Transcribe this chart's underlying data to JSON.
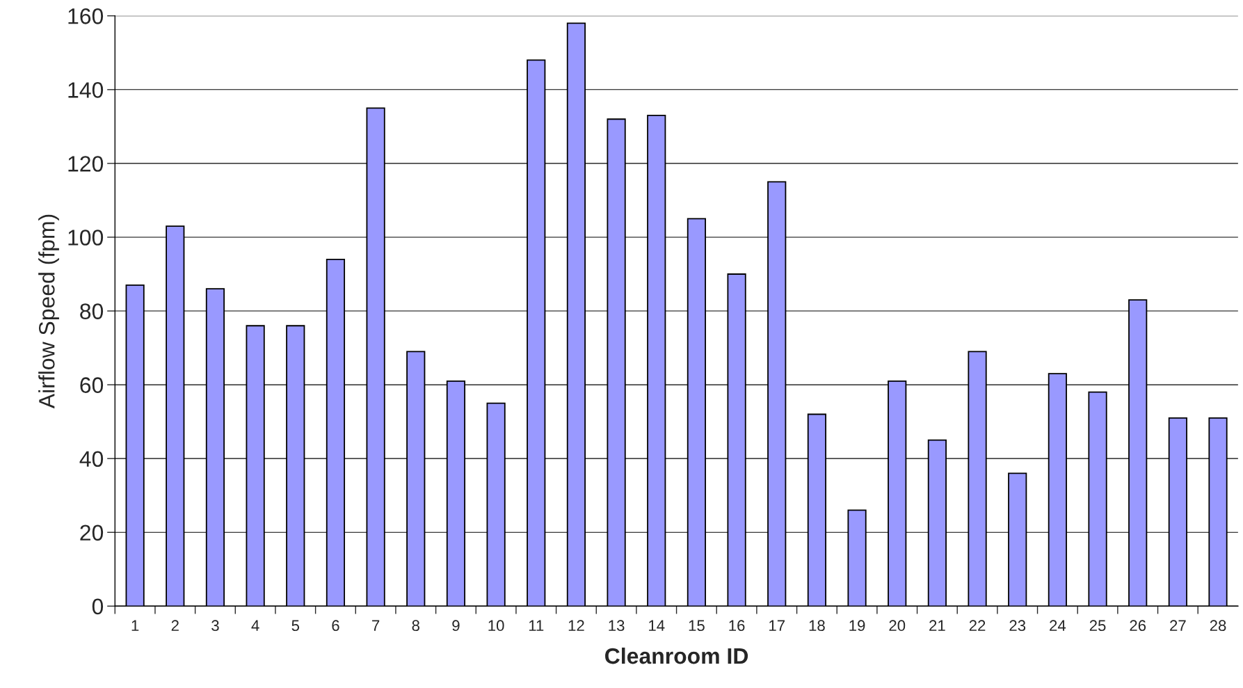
{
  "chart_data": {
    "type": "bar",
    "xlabel": "Cleanroom ID",
    "ylabel": "Airflow Speed (fpm)",
    "categories": [
      "1",
      "2",
      "3",
      "4",
      "5",
      "6",
      "7",
      "8",
      "9",
      "10",
      "11",
      "12",
      "13",
      "14",
      "15",
      "16",
      "17",
      "18",
      "19",
      "20",
      "21",
      "22",
      "23",
      "24",
      "25",
      "26",
      "27",
      "28"
    ],
    "values": [
      87,
      103,
      86,
      76,
      76,
      94,
      135,
      69,
      61,
      55,
      148,
      158,
      132,
      133,
      105,
      90,
      115,
      52,
      26,
      61,
      45,
      69,
      36,
      63,
      58,
      83,
      51,
      51
    ],
    "color": "#9999ff",
    "ylim": [
      0,
      160
    ],
    "yticks": [
      0,
      20,
      40,
      60,
      80,
      100,
      120,
      140,
      160
    ],
    "grid": "y"
  }
}
